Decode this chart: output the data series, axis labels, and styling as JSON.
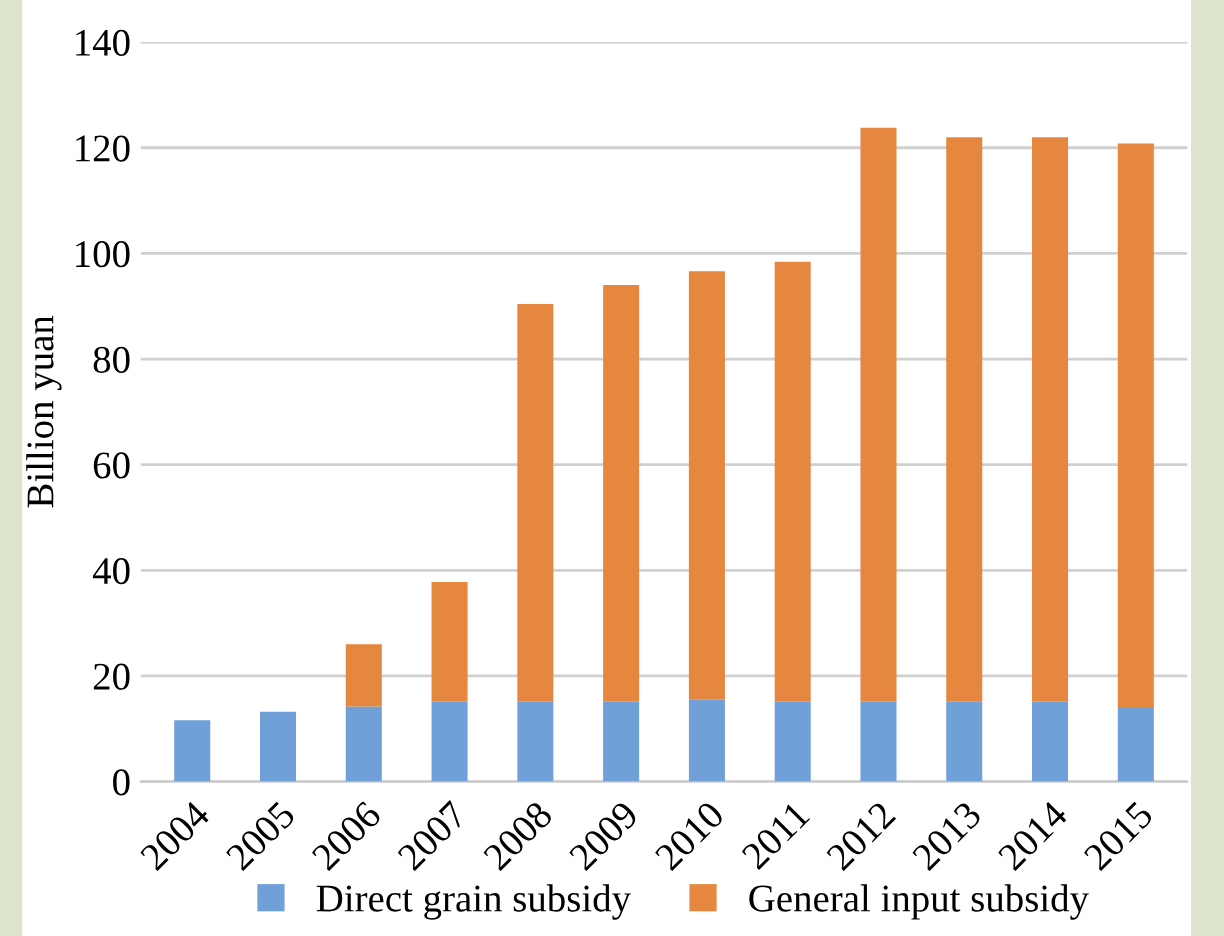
{
  "chart_data": {
    "type": "bar",
    "stacked": true,
    "ylabel": "Billion yuan",
    "categories": [
      "2004",
      "2005",
      "2006",
      "2007",
      "2008",
      "2009",
      "2010",
      "2011",
      "2012",
      "2013",
      "2014",
      "2015"
    ],
    "series": [
      {
        "name": "Direct grain subsidy",
        "color": "#6fa0d8",
        "values": [
          11.6,
          13.2,
          14.2,
          15.1,
          15.1,
          15.1,
          15.5,
          15.1,
          15.1,
          15.1,
          15.1,
          14.1
        ]
      },
      {
        "name": "General input subsidy",
        "color": "#e6873f",
        "values": [
          null,
          null,
          11.8,
          22.7,
          75.3,
          78.9,
          81.1,
          83.3,
          108.7,
          106.9,
          106.9,
          106.7
        ]
      }
    ],
    "ylim": [
      0,
      140
    ],
    "yticks": [
      0,
      20,
      40,
      60,
      80,
      100,
      120,
      140
    ],
    "grid": "y",
    "legend": "bottom"
  }
}
